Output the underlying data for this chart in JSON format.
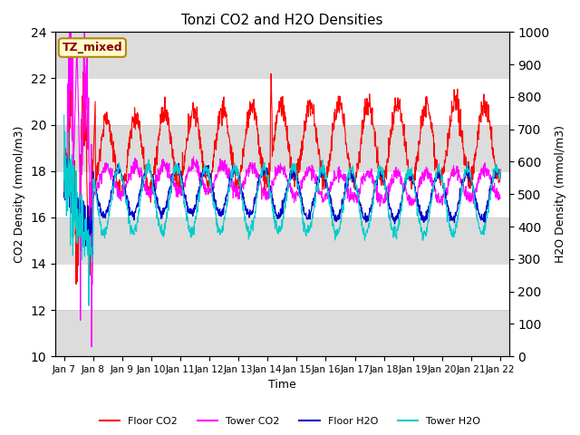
{
  "title": "Tonzi CO2 and H2O Densities",
  "xlabel": "Time",
  "ylabel_left": "CO2 Density (mmol/m3)",
  "ylabel_right": "H2O Density (mmol/m3)",
  "ylim_left": [
    10,
    24
  ],
  "ylim_right": [
    0,
    1000
  ],
  "annotation_text": "TZ_mixed",
  "annotation_color": "#8B0000",
  "annotation_bg": "#FFFFCC",
  "annotation_border": "#B8860B",
  "colors": {
    "floor_co2": "#FF0000",
    "tower_co2": "#FF00FF",
    "floor_h2o": "#0000CC",
    "tower_h2o": "#00CCCC"
  },
  "legend_labels": [
    "Floor CO2",
    "Tower CO2",
    "Floor H2O",
    "Tower H2O"
  ],
  "x_tick_labels": [
    "Jan 7",
    "Jan 8",
    "Jan 9",
    "Jan 10",
    "Jan 11",
    "Jan 12",
    "Jan 13",
    "Jan 14",
    "Jan 15",
    "Jan 16",
    "Jan 17",
    "Jan 18",
    "Jan 19",
    "Jan 20",
    "Jan 21",
    "Jan 22"
  ],
  "grid_color": "#CCCCCC",
  "band_color": "#DCDCDC",
  "plot_bg": "#FFFFFF"
}
